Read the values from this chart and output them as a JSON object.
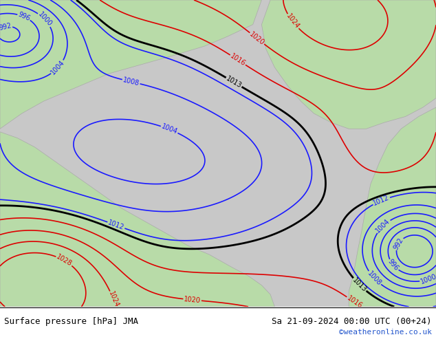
{
  "title_left": "Surface pressure [hPa] JMA",
  "title_right": "Sa 21-09-2024 00:00 UTC (00+24)",
  "credit": "©weatheronline.co.uk",
  "sea_color": "#c8c8c8",
  "land_color": "#b8dba8",
  "footer_bg": "#ffffff",
  "blue_levels": [
    992,
    996,
    1000,
    1004,
    1008,
    1012
  ],
  "black_levels": [
    1013
  ],
  "red_levels": [
    1016,
    1020,
    1024,
    1028
  ],
  "blue_lw": 1.2,
  "black_lw": 2.0,
  "red_lw": 1.2,
  "label_fontsize": 7
}
